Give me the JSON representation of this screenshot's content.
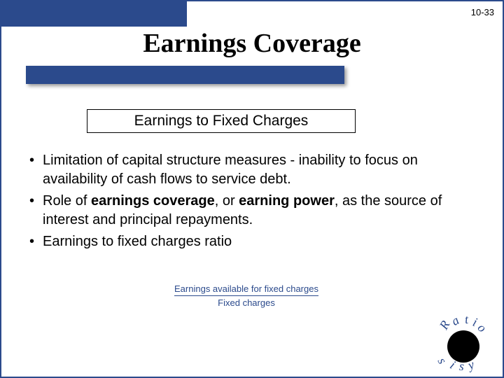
{
  "page_number": "10-33",
  "title": "Earnings Coverage",
  "subtitle": "Earnings to Fixed Charges",
  "bullets": [
    {
      "html": "Limitation of capital structure measures - inability to focus on availability of cash flows to service debt."
    },
    {
      "html": "Role of <b>earnings coverage</b>, or <b>earning power</b>, as the source of interest and principal repayments."
    },
    {
      "html": "Earnings to fixed charges ratio"
    }
  ],
  "formula": {
    "numerator": "Earnings available for fixed charges",
    "denominator": "Fixed charges"
  },
  "corner_text": {
    "top": "Ratio",
    "bottom": "Analysis"
  },
  "colors": {
    "accent": "#2b4a8c",
    "text": "#000000",
    "background": "#ffffff"
  }
}
